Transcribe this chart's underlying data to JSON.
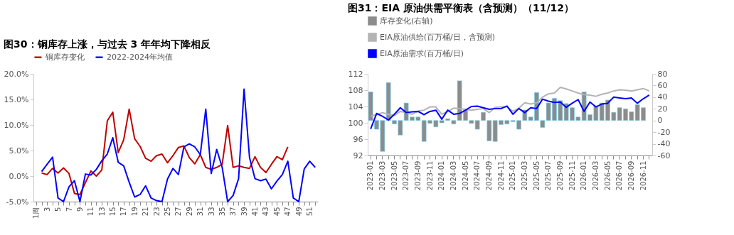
{
  "chart_data": [
    {
      "type": "line",
      "title": "图30：铜库存上涨，与过去 3 年年均下降相反",
      "categories": [
        "1周",
        null,
        "3",
        null,
        "5",
        null,
        "7",
        null,
        "9",
        null,
        "11",
        null,
        "13",
        null,
        "15",
        null,
        "17",
        null,
        "19",
        null,
        "21",
        null,
        "23",
        null,
        "25",
        null,
        "27",
        null,
        "29",
        null,
        "31",
        null,
        "33",
        null,
        "35",
        null,
        "37",
        null,
        "39",
        null,
        "41",
        null,
        "43",
        null,
        "45",
        null,
        "47",
        null,
        "49",
        null,
        "51",
        null
      ],
      "series": [
        {
          "name": "铜库存变化",
          "color": "#c00000",
          "values": [
            null,
            0.6,
            0.3,
            1.5,
            0.6,
            1.6,
            0.5,
            -3.4,
            -3.6,
            -1.3,
            1.0,
            0.0,
            1.2,
            10.8,
            12.5,
            4.6,
            7.1,
            13.1,
            7.3,
            5.8,
            3.5,
            2.9,
            4.0,
            4.3,
            2.6,
            4.0,
            5.6,
            5.9,
            3.6,
            2.4,
            4.2,
            1.7,
            1.3,
            1.7,
            2.3,
            9.9,
            1.7,
            2.0,
            1.7,
            1.5,
            3.8,
            1.7,
            0.7,
            2.3,
            3.8,
            3.2,
            5.7,
            null,
            null,
            null,
            null,
            null
          ]
        },
        {
          "name": "2022-2024年均值",
          "color": "#0000ff",
          "values": [
            null,
            0.9,
            2.3,
            3.7,
            -4.3,
            -5.0,
            -2.1,
            -0.9,
            -5.0,
            0.4,
            0.2,
            1.3,
            3.0,
            4.3,
            7.5,
            2.7,
            2.0,
            -1.2,
            -4.1,
            -3.6,
            -1.9,
            -4.3,
            -4.8,
            -5.0,
            -0.6,
            1.5,
            0.3,
            5.7,
            6.3,
            5.7,
            4.2,
            13.1,
            0.5,
            5.2,
            1.7,
            -5.0,
            -3.8,
            -0.5,
            17.0,
            3.6,
            -0.5,
            -0.9,
            -0.6,
            -2.5,
            -1.0,
            0.3,
            2.9,
            -4.3,
            -5.0,
            1.4,
            2.9,
            1.7
          ]
        }
      ],
      "ylim": [
        -5,
        20
      ],
      "yticks": [
        {
          "value": -5,
          "label": "-5.0%"
        },
        {
          "value": 0,
          "label": "0.0%"
        },
        {
          "value": 5,
          "label": "5.0%"
        },
        {
          "value": 10,
          "label": "10.0%"
        },
        {
          "value": 15,
          "label": "15.0%"
        },
        {
          "value": 20,
          "label": "20.0%"
        }
      ],
      "grid": false,
      "legend": "top"
    },
    {
      "type": "line",
      "title": "图31：EIA 原油供需平衡表（含预测）（11/12）",
      "categories": [
        "2023-01",
        null,
        "2023-03",
        null,
        "2023-05",
        null,
        "2023-07",
        null,
        "2023-09",
        null,
        "2023-11",
        null,
        "2024-01",
        null,
        "2024-03",
        null,
        "2024-05",
        null,
        "2024-07",
        null,
        "2024-09",
        null,
        "2024-11",
        null,
        "2025-01",
        null,
        "2025-03",
        null,
        "2025-05",
        null,
        "2025-07",
        null,
        "2025-09",
        null,
        "2025-11",
        null,
        "2026-01",
        null,
        "2026-03",
        null,
        "2026-05",
        null,
        "2026-07",
        null,
        "2026-09",
        null,
        "2026-11",
        null
      ],
      "series": [
        {
          "name": "库存变化(右轴)",
          "type": "bar",
          "axis": "y2",
          "color": "#8c8c8c",
          "values": [
            49,
            -15,
            -53,
            65,
            -6,
            -25,
            30,
            6,
            6,
            -36,
            -5,
            -11,
            -4,
            3,
            -6,
            68,
            18,
            -5,
            -15,
            14,
            -35,
            -36,
            -7,
            -6,
            -2,
            -15,
            18,
            6,
            48,
            -12,
            30,
            38,
            34,
            29,
            22,
            6,
            49,
            10,
            25,
            30,
            35,
            14,
            22,
            20,
            15,
            27,
            22,
            null
          ]
        },
        {
          "name": "EIA原油供给(百万桶/日，含预测)",
          "color": "#b4b4b4",
          "values": [
            101.6,
            102.0,
            102.5,
            102.1,
            101.8,
            102.8,
            102.5,
            102.1,
            102.9,
            103.1,
            103.9,
            103.9,
            102.1,
            102.8,
            103.6,
            103.5,
            103.3,
            103.1,
            103.3,
            103.5,
            102.5,
            103.8,
            103.9,
            103.9,
            102.8,
            103.6,
            104.9,
            104.6,
            104.9,
            106.3,
            107.1,
            107.3,
            108.7,
            108.3,
            107.8,
            107.3,
            106.9,
            106.8,
            106.5,
            107.0,
            107.3,
            107.8,
            108.1,
            108.0,
            107.8,
            108.1,
            108.4,
            107.8
          ]
        },
        {
          "name": "EIA原油需求(百万桶/日)",
          "color": "#0000ff",
          "values": [
            98.5,
            102.3,
            101.6,
            100.7,
            102.1,
            103.7,
            102.5,
            102.7,
            102.8,
            102.0,
            102.8,
            103.1,
            100.9,
            103.1,
            102.1,
            102.3,
            103.1,
            104.0,
            104.1,
            103.7,
            103.3,
            103.5,
            103.5,
            104.1,
            102.1,
            103.5,
            102.5,
            103.7,
            103.5,
            105.8,
            105.3,
            105.0,
            105.1,
            103.8,
            104.8,
            105.7,
            102.8,
            105.1,
            103.9,
            104.6,
            104.8,
            106.3,
            106.1,
            105.9,
            106.1,
            104.8,
            105.9,
            106.8
          ]
        }
      ],
      "ylim": [
        92,
        112
      ],
      "yticks": [
        92,
        96,
        100,
        104,
        108,
        112
      ],
      "y2lim": [
        -60,
        80
      ],
      "y2ticks": [
        -60,
        -40,
        -20,
        0,
        20,
        40,
        60,
        80
      ],
      "grid": false,
      "legend": "top"
    }
  ]
}
